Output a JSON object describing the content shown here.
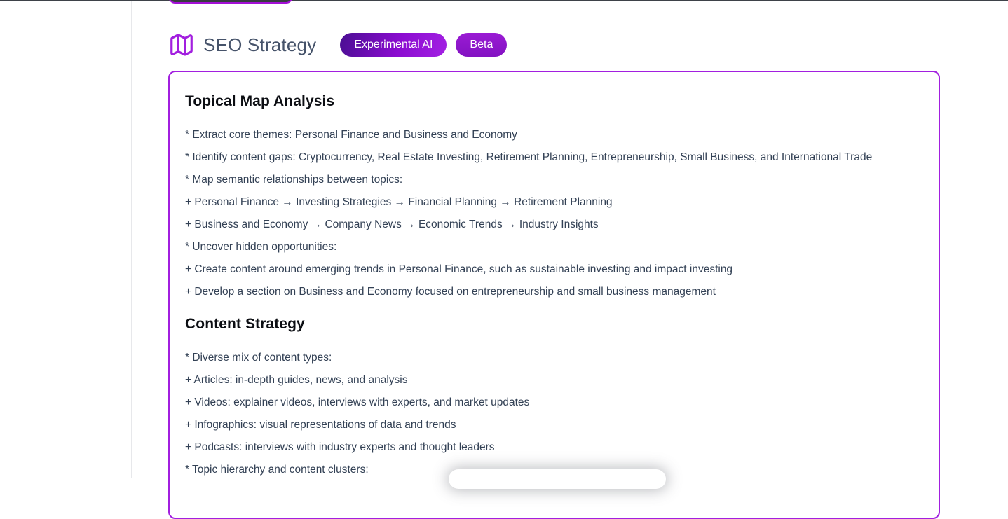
{
  "header": {
    "icon": "map-icon",
    "title": "SEO Strategy",
    "badges": [
      {
        "label": "Experimental AI"
      },
      {
        "label": "Beta"
      }
    ]
  },
  "card": {
    "sections": [
      {
        "heading": "Topical Map Analysis",
        "lines": [
          "* Extract core themes: Personal Finance and Business and Economy",
          "* Identify content gaps: Cryptocurrency, Real Estate Investing, Retirement Planning, Entrepreneurship, Small Business, and International Trade",
          "* Map semantic relationships between topics:",
          "+ Personal Finance → Investing Strategies → Financial Planning → Retirement Planning",
          "+ Business and Economy → Company News → Economic Trends → Industry Insights",
          "* Uncover hidden opportunities:",
          "+ Create content around emerging trends in Personal Finance, such as sustainable investing and impact investing",
          "+ Develop a section on Business and Economy focused on entrepreneurship and small business management"
        ]
      },
      {
        "heading": "Content Strategy",
        "lines": [
          "* Diverse mix of content types:",
          "+ Articles: in-depth guides, news, and analysis",
          "+ Videos: explainer videos, interviews with experts, and market updates",
          "+ Infographics: visual representations of data and trends",
          "+ Podcasts: interviews with industry experts and thought leaders",
          "* Topic hierarchy and content clusters:"
        ]
      }
    ]
  },
  "colors": {
    "accent_purple": "#a21fdf",
    "experimental_badge_gradient_start": "#4a0e92",
    "experimental_badge_gradient_end": "#a321e3",
    "beta_badge": "#8d16ca",
    "top_strip": "#3e4249",
    "cutoff_button_fill": "#393b41",
    "body_text": "#334155",
    "heading_text": "#0c0e13",
    "title_text": "#46536a",
    "divider": "#e7e8eb"
  }
}
